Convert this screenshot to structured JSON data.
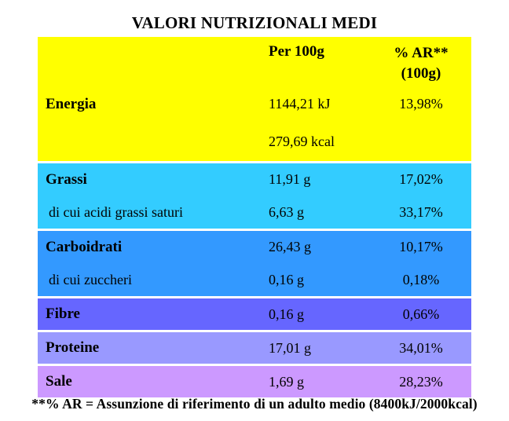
{
  "title": "VALORI NUTRIZIONALI MEDI",
  "colors": {
    "header_energy": "#FFFF00",
    "fats": "#33CCFF",
    "carbs": "#3399FF",
    "fiber": "#6666FF",
    "protein": "#9999FF",
    "salt": "#CC99FF",
    "text": "#000000",
    "background": "#FFFFFF"
  },
  "table": {
    "columns": {
      "per100g": "Per 100g",
      "ar_line1": "% AR**",
      "ar_line2": "(100g)"
    },
    "rows": {
      "energia": {
        "label": "Energia",
        "kj": "1144,21 kJ",
        "kj_ar": "13,98%",
        "kcal": "279,69 kcal"
      },
      "grassi": {
        "label": "Grassi",
        "value": "11,91 g",
        "ar": "17,02%"
      },
      "grassi_saturi": {
        "label": "di cui acidi grassi saturi",
        "value": "6,63 g",
        "ar": "33,17%"
      },
      "carboidrati": {
        "label": "Carboidrati",
        "value": "26,43 g",
        "ar": "10,17%"
      },
      "zuccheri": {
        "label": "di cui zuccheri",
        "value": "0,16 g",
        "ar": "0,18%"
      },
      "fibre": {
        "label": "Fibre",
        "value": "0,16 g",
        "ar": "0,66%"
      },
      "proteine": {
        "label": "Proteine",
        "value": "17,01 g",
        "ar": "34,01%"
      },
      "sale": {
        "label": "Sale",
        "value": "1,69 g",
        "ar": "28,23%"
      }
    }
  },
  "footnote": "**% AR = Assunzione di riferimento di un adulto medio (8400kJ/2000kcal)"
}
